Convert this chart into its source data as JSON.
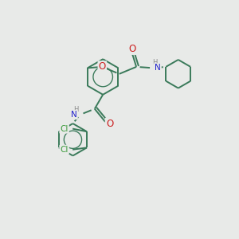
{
  "background_color": "#e8eae8",
  "bond_color": "#3a7a5a",
  "N_color": "#2020cc",
  "O_color": "#cc2020",
  "Cl_color": "#3a9a3a",
  "H_color": "#888888",
  "figsize": [
    3.0,
    3.0
  ],
  "dpi": 100,
  "xlim": [
    0,
    10
  ],
  "ylim": [
    0,
    10
  ]
}
